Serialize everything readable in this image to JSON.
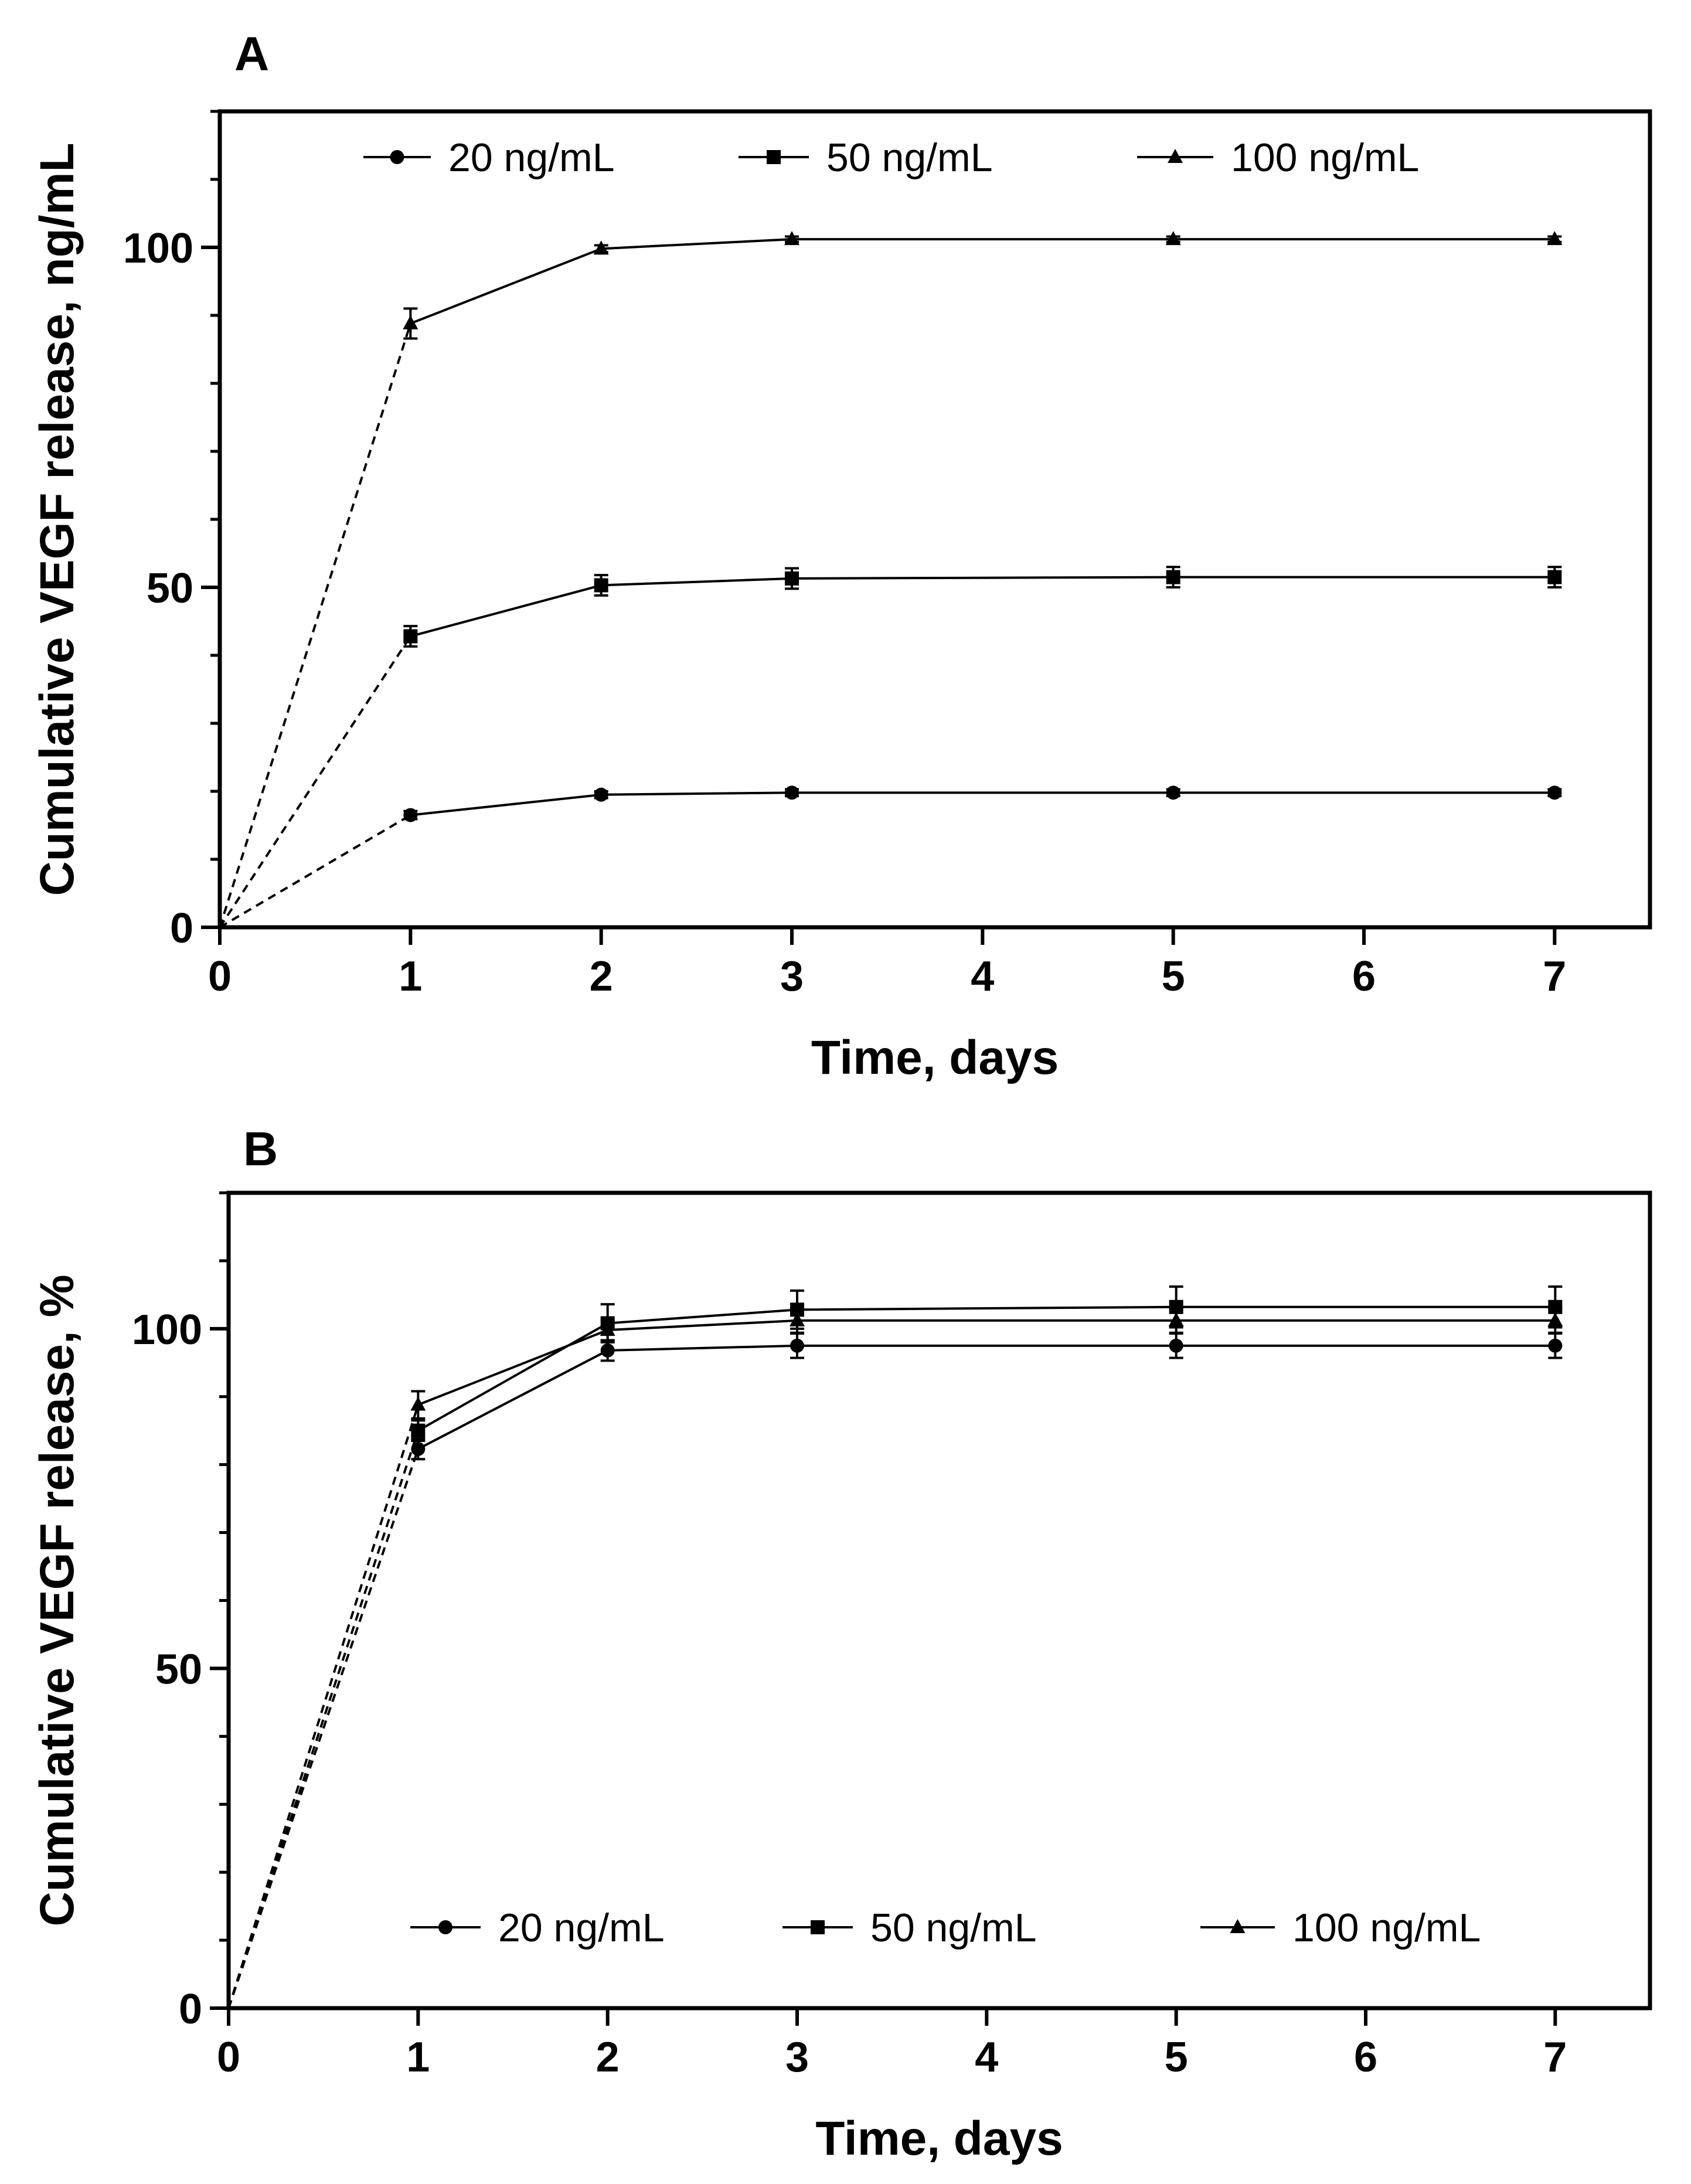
{
  "chart_data": [
    {
      "panel": "A",
      "type": "line",
      "xlabel": "Time, days",
      "ylabel": "Cumulative VEGF release, ng/mL",
      "xlim": [
        0,
        7.5
      ],
      "ylim": [
        0,
        120
      ],
      "xticks": [
        0,
        1,
        2,
        3,
        4,
        5,
        6,
        7
      ],
      "yticks": [
        0,
        50,
        100
      ],
      "y_minor_step": 10,
      "legend_position": "top",
      "dashed_segment": "day 0 to day 1",
      "series": [
        {
          "name": "20 ng/mL",
          "marker": "circle",
          "x": [
            0,
            1,
            2,
            3,
            5,
            7
          ],
          "y": [
            0,
            16.5,
            19.5,
            19.8,
            19.8,
            19.8
          ],
          "err": [
            0,
            0.6,
            0.5,
            0.5,
            0.5,
            0.5
          ]
        },
        {
          "name": "50 ng/mL",
          "marker": "square",
          "x": [
            0,
            1,
            2,
            3,
            5,
            7
          ],
          "y": [
            0,
            42.8,
            50.3,
            51.3,
            51.5,
            51.5
          ],
          "err": [
            0,
            1.5,
            1.5,
            1.5,
            1.5,
            1.5
          ]
        },
        {
          "name": "100 ng/mL",
          "marker": "triangle",
          "x": [
            0,
            1,
            2,
            3,
            5,
            7
          ],
          "y": [
            0,
            88.8,
            99.8,
            101.2,
            101.2,
            101.2
          ],
          "err": [
            0,
            2.2,
            0.5,
            0.4,
            0.4,
            0.4
          ]
        }
      ]
    },
    {
      "panel": "B",
      "type": "line",
      "xlabel": "Time, days",
      "ylabel": "Cumulative VEGF release, %",
      "xlim": [
        0,
        7.5
      ],
      "ylim": [
        0,
        120
      ],
      "xticks": [
        0,
        1,
        2,
        3,
        4,
        5,
        6,
        7
      ],
      "yticks": [
        0,
        50,
        100
      ],
      "y_minor_step": 10,
      "legend_position": "bottom",
      "dashed_segment": "day 0 to day 1",
      "series": [
        {
          "name": "20 ng/mL",
          "marker": "circle",
          "x": [
            0,
            1,
            2,
            3,
            5,
            7
          ],
          "y": [
            0,
            82.3,
            96.8,
            97.5,
            97.5,
            97.5
          ],
          "err": [
            0,
            1.5,
            1.5,
            1.8,
            1.8,
            1.8
          ]
        },
        {
          "name": "50 ng/mL",
          "marker": "square",
          "x": [
            0,
            1,
            2,
            3,
            5,
            7
          ],
          "y": [
            0,
            85.0,
            100.8,
            102.8,
            103.2,
            103.2
          ],
          "err": [
            0,
            1.5,
            2.8,
            2.8,
            3.0,
            3.0
          ]
        },
        {
          "name": "100 ng/mL",
          "marker": "triangle",
          "x": [
            0,
            1,
            2,
            3,
            5,
            7
          ],
          "y": [
            0,
            88.8,
            99.8,
            101.2,
            101.2,
            101.2
          ],
          "err": [
            0,
            2.0,
            1.5,
            1.8,
            1.8,
            1.8
          ]
        }
      ]
    }
  ]
}
